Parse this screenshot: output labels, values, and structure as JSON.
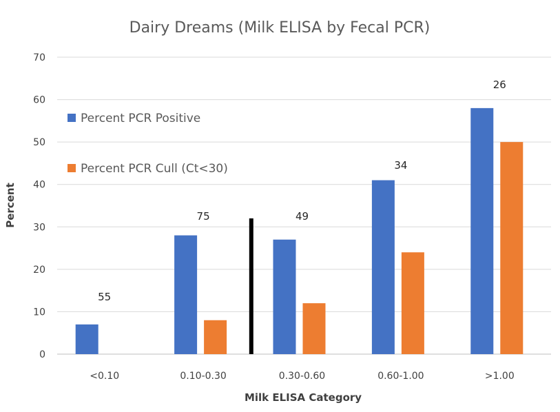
{
  "chart_data": {
    "type": "bar",
    "title": "Dairy Dreams (Milk ELISA by Fecal PCR)",
    "xlabel": "Milk ELISA Category",
    "ylabel": "Percent",
    "ylim": [
      0,
      70
    ],
    "yticks": [
      0,
      10,
      20,
      30,
      40,
      50,
      60,
      70
    ],
    "grid": true,
    "legend_position": "left",
    "categories": [
      "<0.10",
      "0.10-0.30",
      "0.30-0.60",
      "0.60-1.00",
      ">1.00"
    ],
    "series": [
      {
        "name": "Percent PCR Positive",
        "color": "#4472C4",
        "values": [
          7,
          28,
          27,
          41,
          58
        ]
      },
      {
        "name": "Percent PCR Cull (Ct<30)",
        "color": "#ED7D31",
        "values": [
          0,
          8,
          12,
          24,
          50
        ]
      }
    ],
    "annotations": [
      "55",
      "75",
      "49",
      "34",
      "26"
    ],
    "annotation_values": [
      13.5,
      32.5,
      32.5,
      44.5,
      63.5
    ],
    "cutoff_marker": {
      "between": [
        "0.10-0.30",
        "0.30-0.60"
      ],
      "value": 32,
      "color": "#000000"
    }
  }
}
